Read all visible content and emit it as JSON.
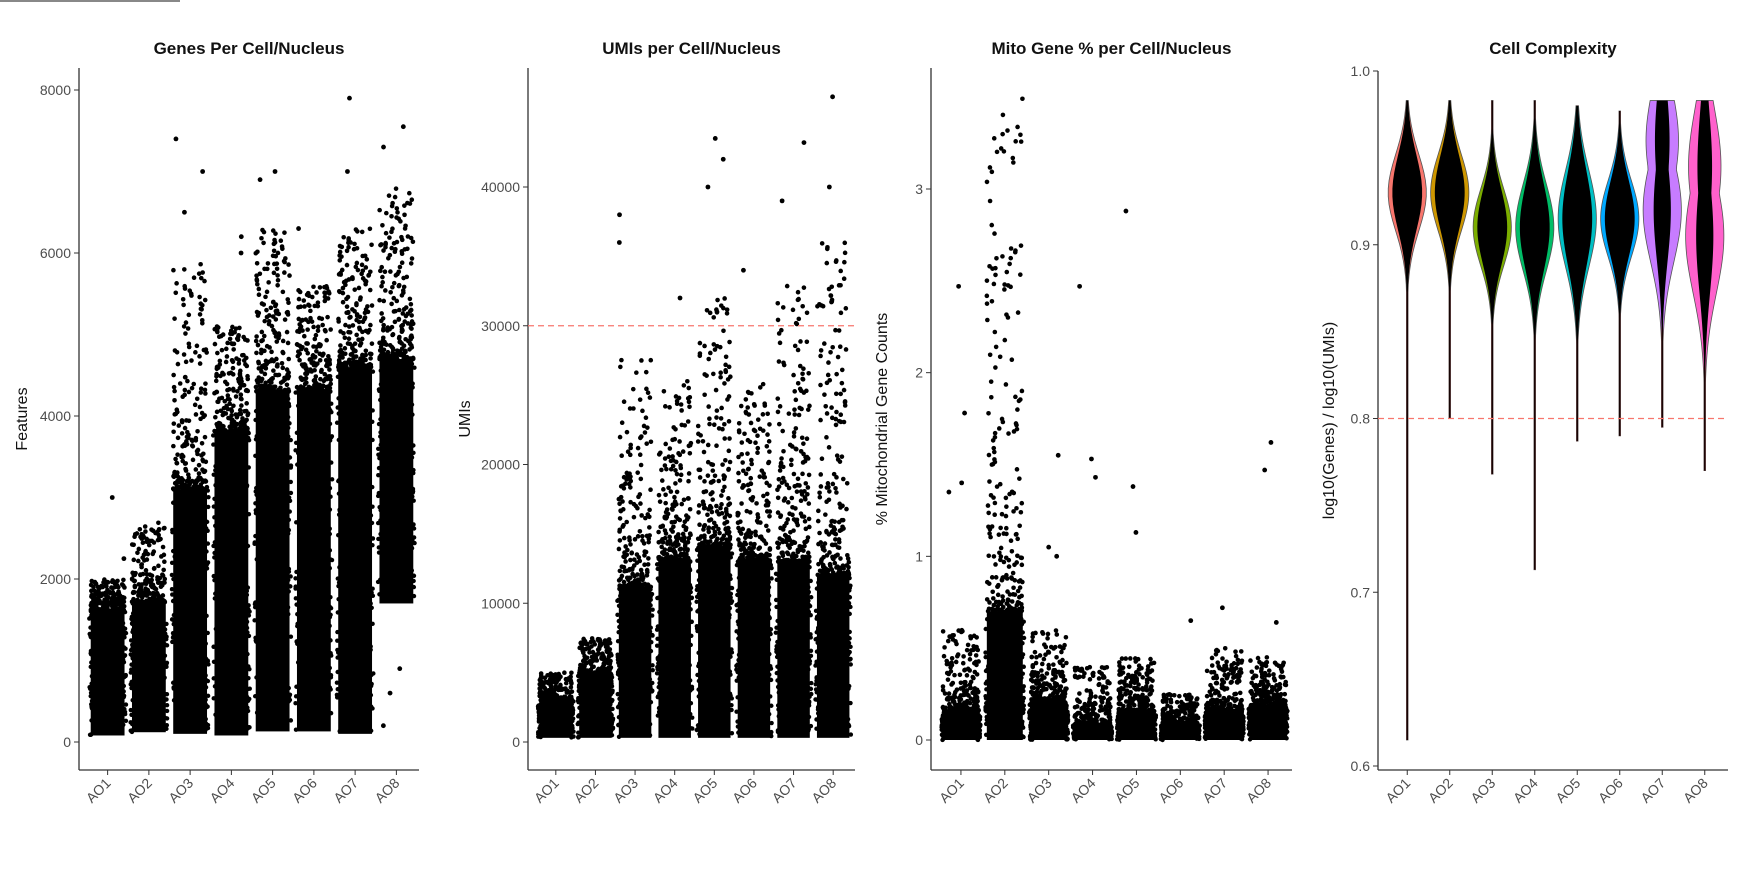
{
  "chart_data": [
    {
      "type": "scatter",
      "title": "Genes Per Cell/Nucleus",
      "ylabel": "Features",
      "xlabel": "",
      "ylim": [
        0,
        8000
      ],
      "yticks": [
        "0",
        "2000",
        "4000",
        "6000",
        "8000"
      ],
      "ytick_values": [
        0,
        2000,
        4000,
        6000,
        8000
      ],
      "categories": [
        "AO1",
        "AO2",
        "AO3",
        "AO4",
        "AO5",
        "AO6",
        "AO7",
        "AO8"
      ],
      "groups": [
        {
          "bulk": [
            80,
            1600
          ],
          "tail_max": 2000,
          "outliers": [
            2250,
            3000
          ]
        },
        {
          "bulk": [
            120,
            1700
          ],
          "tail_max": 2700,
          "outliers": []
        },
        {
          "bulk": [
            100,
            3100
          ],
          "tail_max": 5900,
          "outliers": [
            6500,
            7000,
            7400
          ]
        },
        {
          "bulk": [
            80,
            3800
          ],
          "tail_max": 5100,
          "outliers": [
            6000,
            6200
          ]
        },
        {
          "bulk": [
            130,
            4300
          ],
          "tail_max": 6300,
          "outliers": [
            6900,
            7000
          ]
        },
        {
          "bulk": [
            130,
            4300
          ],
          "tail_max": 5600,
          "outliers": [
            6300
          ]
        },
        {
          "bulk": [
            100,
            4600
          ],
          "tail_max": 6300,
          "outliers": [
            7000,
            7900
          ]
        },
        {
          "bulk": [
            1700,
            4700
          ],
          "tail_max": 6800,
          "outliers": [
            7300,
            7550,
            200,
            600,
            900
          ]
        }
      ],
      "hline": null
    },
    {
      "type": "scatter",
      "title": "UMIs per Cell/Nucleus",
      "ylabel": "UMIs",
      "xlabel": "",
      "ylim": [
        0,
        40000
      ],
      "yticks": [
        "0",
        "10000",
        "20000",
        "30000",
        "40000"
      ],
      "ytick_values": [
        0,
        10000,
        20000,
        30000,
        40000
      ],
      "categories": [
        "AO1",
        "AO2",
        "AO3",
        "AO4",
        "AO5",
        "AO6",
        "AO7",
        "AO8"
      ],
      "groups": [
        {
          "bulk": [
            300,
            3000
          ],
          "tail_max": 5000,
          "outliers": []
        },
        {
          "bulk": [
            300,
            4800
          ],
          "tail_max": 7500,
          "outliers": []
        },
        {
          "bulk": [
            300,
            11000
          ],
          "tail_max": 28000,
          "outliers": [
            36000,
            38000
          ]
        },
        {
          "bulk": [
            300,
            13000
          ],
          "tail_max": 26000,
          "outliers": [
            32000
          ]
        },
        {
          "bulk": [
            300,
            14000
          ],
          "tail_max": 32000,
          "outliers": [
            40000,
            42000,
            43500
          ]
        },
        {
          "bulk": [
            300,
            13000
          ],
          "tail_max": 26000,
          "outliers": [
            34000
          ]
        },
        {
          "bulk": [
            300,
            13000
          ],
          "tail_max": 33000,
          "outliers": [
            39000,
            43200
          ]
        },
        {
          "bulk": [
            300,
            12000
          ],
          "tail_max": 36000,
          "outliers": [
            40000,
            46500
          ]
        }
      ],
      "hline": 30000
    },
    {
      "type": "scatter",
      "title": "Mito Gene % per Cell/Nucleus",
      "ylabel": "% Mitochondrial Gene Counts",
      "xlabel": "",
      "ylim": [
        0,
        3
      ],
      "yticks": [
        "0",
        "1",
        "2",
        "3"
      ],
      "ytick_values": [
        0,
        1,
        2,
        3
      ],
      "categories": [
        "AO1",
        "AO2",
        "AO3",
        "AO4",
        "AO5",
        "AO6",
        "AO7",
        "AO8"
      ],
      "groups": [
        {
          "bulk": [
            0,
            0.15
          ],
          "tail_max": 0.6,
          "outliers": [
            1.35,
            1.4,
            1.78,
            2.47
          ]
        },
        {
          "bulk": [
            0,
            0.7
          ],
          "tail_max": 3.5,
          "outliers": []
        },
        {
          "bulk": [
            0,
            0.2
          ],
          "tail_max": 0.6,
          "outliers": [
            1.0,
            1.05,
            1.55
          ]
        },
        {
          "bulk": [
            0,
            0.08
          ],
          "tail_max": 0.4,
          "outliers": [
            1.43,
            1.53,
            2.47
          ]
        },
        {
          "bulk": [
            0,
            0.15
          ],
          "tail_max": 0.45,
          "outliers": [
            1.13,
            1.38,
            2.88
          ]
        },
        {
          "bulk": [
            0,
            0.08
          ],
          "tail_max": 0.25,
          "outliers": [
            0.65
          ]
        },
        {
          "bulk": [
            0,
            0.15
          ],
          "tail_max": 0.5,
          "outliers": [
            0.72
          ]
        },
        {
          "bulk": [
            0,
            0.18
          ],
          "tail_max": 0.45,
          "outliers": [
            0.64,
            1.47,
            1.62
          ]
        }
      ],
      "hline": null
    },
    {
      "type": "violin",
      "title": "Cell Complexity",
      "ylabel": "log10(Genes) / log10(UMIs)",
      "xlabel": "",
      "ylim": [
        0.6,
        1.0
      ],
      "yticks": [
        "0.6",
        "0.7",
        "0.8",
        "0.9",
        "1.0"
      ],
      "ytick_values": [
        0.6,
        0.7,
        0.8,
        0.9,
        1.0
      ],
      "categories": [
        "AO1",
        "AO2",
        "AO3",
        "AO4",
        "AO5",
        "AO6",
        "AO7",
        "AO8"
      ],
      "groups": [
        {
          "min": 0.615,
          "max": 0.983,
          "mode": 0.93,
          "spread": 0.022,
          "color": "#F8766D"
        },
        {
          "min": 0.8,
          "max": 0.983,
          "mode": 0.93,
          "spread": 0.022,
          "color": "#CD9600"
        },
        {
          "min": 0.768,
          "max": 0.983,
          "mode": 0.91,
          "spread": 0.022,
          "color": "#7CAE00"
        },
        {
          "min": 0.713,
          "max": 0.983,
          "mode": 0.91,
          "spread": 0.025,
          "color": "#00BE67"
        },
        {
          "min": 0.787,
          "max": 0.98,
          "mode": 0.915,
          "spread": 0.028,
          "color": "#00BFC4"
        },
        {
          "min": 0.79,
          "max": 0.977,
          "mode": 0.915,
          "spread": 0.022,
          "color": "#00A9FF"
        },
        {
          "min": 0.795,
          "max": 0.983,
          "mode": 0.92,
          "spread": 0.03,
          "color": "#C77CFF"
        },
        {
          "min": 0.77,
          "max": 0.983,
          "mode": 0.905,
          "spread": 0.033,
          "color": "#FF61CC"
        }
      ],
      "hline": 0.8
    }
  ],
  "colors": {
    "points": "#000000",
    "threshold": "#F8766D",
    "whisker": "#B22222"
  }
}
